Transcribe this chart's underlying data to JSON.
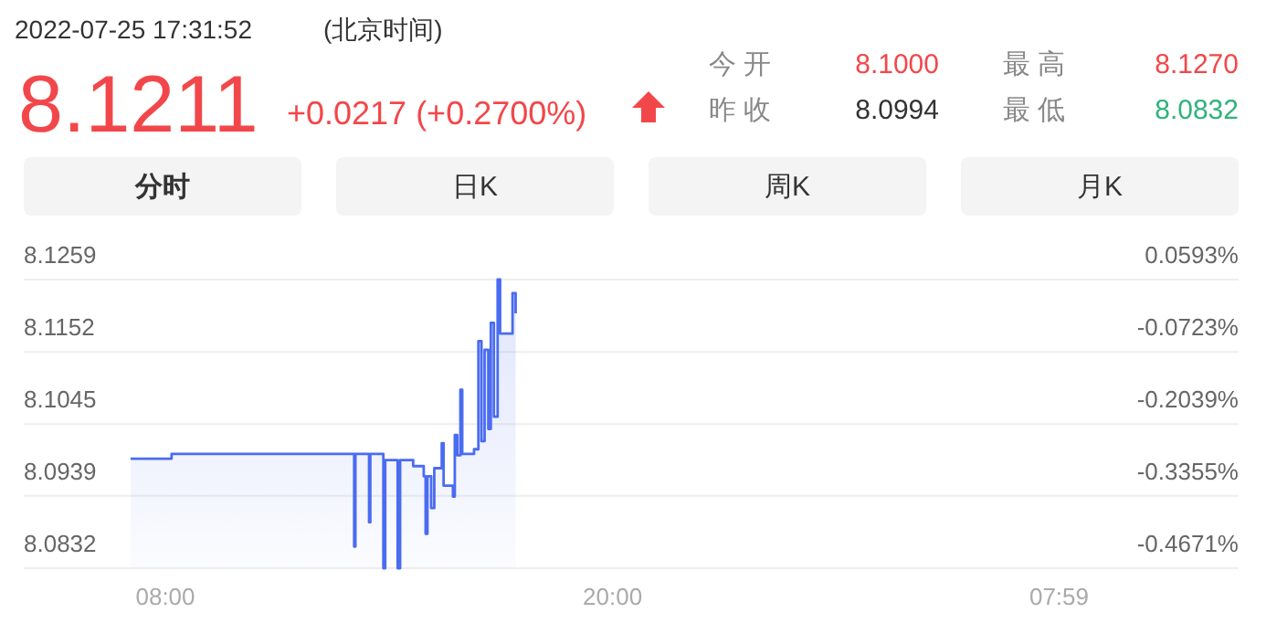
{
  "chart_data": [
    {
      "type": "other",
      "title": "2022-07-25 17:31:52",
      "subtitle": "(北京时间)",
      "annotations": [
        "8.1211",
        "+0.0217 (+0.2700%)",
        "今 开",
        "8.1000",
        "昨 收",
        "8.0994",
        "最 高",
        "8.1270",
        "最 低",
        "8.0832",
        "分时",
        "日K",
        "周K",
        "月K"
      ]
    },
    {
      "type": "step",
      "xlim": [
        "2022-07-25T04:12",
        "2022-07-26T12:48"
      ],
      "xticks": [
        {
          "value": "2022-07-25T08:00",
          "label": "08:00"
        },
        {
          "value": "2022-07-25T20:00",
          "label": "20:00"
        },
        {
          "value": "2022-07-26T07:59",
          "label": "07:59"
        }
      ],
      "ylim": [
        8.0832,
        8.1259
      ],
      "yticks": [
        8.0832,
        8.0939,
        8.1045,
        8.1152,
        8.1259
      ],
      "y2lim": [
        -0.4671,
        0.0593
      ],
      "y2ticks": [
        {
          "value": -0.4671,
          "label": "-0.4671%"
        },
        {
          "value": -0.3355,
          "label": "-0.3355%"
        },
        {
          "value": -0.2039,
          "label": "-0.2039%"
        },
        {
          "value": -0.0723,
          "label": "-0.0723%"
        },
        {
          "value": 0.0593,
          "label": "0.0593%"
        }
      ],
      "grid": "y",
      "series": [
        {
          "color": "#4a6cf0",
          "x": [
            "2022-07-25T07:04",
            "2022-07-25T08:10",
            "2022-07-25T13:04",
            "2022-07-25T13:06",
            "2022-07-25T13:28",
            "2022-07-25T13:30",
            "2022-07-25T13:51",
            "2022-07-25T13:54",
            "2022-07-25T14:14",
            "2022-07-25T14:18",
            "2022-07-25T14:39",
            "2022-07-25T14:56",
            "2022-07-25T14:59",
            "2022-07-25T15:02",
            "2022-07-25T15:08",
            "2022-07-25T15:13",
            "2022-07-25T15:25",
            "2022-07-25T15:28",
            "2022-07-25T15:43",
            "2022-07-25T15:46",
            "2022-07-25T15:50",
            "2022-07-25T15:55",
            "2022-07-25T15:58",
            "2022-07-25T16:17",
            "2022-07-25T16:24",
            "2022-07-25T16:29",
            "2022-07-25T16:34",
            "2022-07-25T16:40",
            "2022-07-25T16:44",
            "2022-07-25T16:49",
            "2022-07-25T16:55",
            "2022-07-25T16:59",
            "2022-07-25T17:19",
            "2022-07-25T17:24"
          ],
          "values": [
            8.0994,
            8.1001,
            8.0864,
            8.1001,
            8.09,
            8.1001,
            8.0832,
            8.0992,
            8.0832,
            8.0992,
            8.0983,
            8.0968,
            8.0883,
            8.0968,
            8.0921,
            8.098,
            8.1017,
            8.0954,
            8.0938,
            8.1029,
            8.0999,
            8.1096,
            8.1001,
            8.1008,
            8.1168,
            8.102,
            8.1155,
            8.1038,
            8.1195,
            8.1056,
            8.1259,
            8.1179,
            8.1239,
            8.1209
          ]
        }
      ]
    }
  ]
}
